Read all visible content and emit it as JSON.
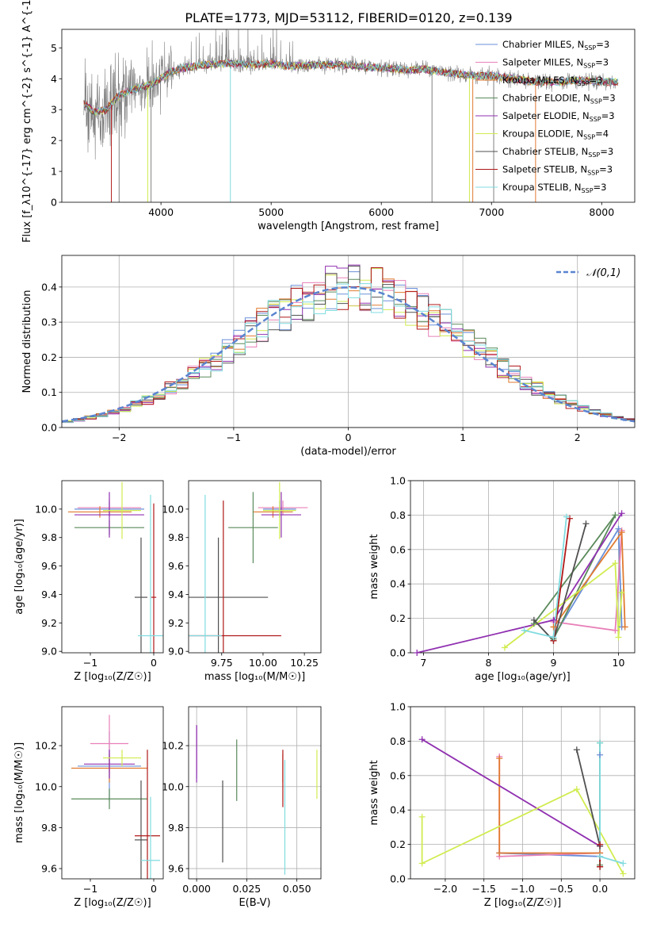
{
  "title": "PLATE=1773, MJD=53112, FIBERID=0120, z=0.139",
  "colors": [
    "#6a8fd8",
    "#e880b8",
    "#e07a30",
    "#5a8a5a",
    "#9030b0",
    "#d0ec50",
    "#505050",
    "#b01818",
    "#80dce0"
  ],
  "legend_labels": [
    "Chabrier MILES, N_{SSP}=3",
    "Salpeter MILES, N_{SSP}=3",
    "Kroupa MILES, N_{SSP}=3",
    "Chabrier ELODIE, N_{SSP}=3",
    "Salpeter ELODIE, N_{SSP}=3",
    "Kroupa ELODIE, N_{SSP}=4",
    "Chabrier STELIB, N_{SSP}=3",
    "Salpeter STELIB, N_{SSP}=3",
    "Kroupa STELIB, N_{SSP}=3"
  ],
  "chart_data": [
    {
      "type": "line",
      "id": "spectrum",
      "xlabel": "wavelength [Angstrom, rest frame]",
      "ylabel": "Flux [f_λ10^{-17} erg cm^{-2} s^{-1} A^{-1}]",
      "xlim": [
        3100,
        8300
      ],
      "ylim": [
        0,
        5.6
      ],
      "xticks": [
        4000,
        5000,
        6000,
        7000,
        8000
      ],
      "yticks": [
        0,
        1,
        2,
        3,
        4,
        5
      ],
      "grid": false,
      "legend": "upper-right",
      "data_color": "#808080",
      "continuum": [
        [
          3300,
          3.2
        ],
        [
          3400,
          2.9
        ],
        [
          3500,
          3.0
        ],
        [
          3600,
          3.4
        ],
        [
          3700,
          3.6
        ],
        [
          3800,
          3.7
        ],
        [
          3900,
          3.8
        ],
        [
          4000,
          4.0
        ],
        [
          4100,
          4.25
        ],
        [
          4200,
          4.35
        ],
        [
          4400,
          4.45
        ],
        [
          4600,
          4.5
        ],
        [
          4800,
          4.45
        ],
        [
          5000,
          4.5
        ],
        [
          5200,
          4.4
        ],
        [
          5400,
          4.45
        ],
        [
          5600,
          4.45
        ],
        [
          5800,
          4.4
        ],
        [
          6000,
          4.35
        ],
        [
          6200,
          4.3
        ],
        [
          6400,
          4.3
        ],
        [
          6600,
          4.2
        ],
        [
          6800,
          4.1
        ],
        [
          7000,
          4.1
        ],
        [
          7200,
          4.0
        ],
        [
          7400,
          3.9
        ],
        [
          7600,
          3.9
        ],
        [
          7800,
          3.95
        ],
        [
          8000,
          3.9
        ],
        [
          8150,
          3.9
        ]
      ],
      "features": [
        {
          "x": 3550,
          "y": 0,
          "series": 7
        },
        {
          "x": 3620,
          "y": 0,
          "series": -1
        },
        {
          "x": 3880,
          "y": 0,
          "series": 5
        },
        {
          "x": 3910,
          "y": 0,
          "series": -1
        },
        {
          "x": 4630,
          "y": 0,
          "series": 8
        },
        {
          "x": 6460,
          "y": 0,
          "series": -1
        },
        {
          "x": 6800,
          "y": 0,
          "series": 5
        },
        {
          "x": 6830,
          "y": 0,
          "series": 2
        },
        {
          "x": 7020,
          "y": 0,
          "series": -1
        },
        {
          "x": 7400,
          "y": 0,
          "series": 2
        }
      ]
    },
    {
      "type": "bar",
      "id": "residuals",
      "xlabel": "(data-model)/error",
      "ylabel": "Normed distribution",
      "xlim": [
        -2.5,
        2.5
      ],
      "ylim": [
        0,
        0.49
      ],
      "xticks": [
        -2,
        -1,
        0,
        1,
        2
      ],
      "yticks": [
        0.0,
        0.1,
        0.2,
        0.3,
        0.4
      ],
      "grid": true,
      "reference_label": "𝒩(0,1)",
      "reference_color": "#5b84d0",
      "bin_width": 0.1
    },
    {
      "type": "scatter",
      "id": "age-vs-Z",
      "xlabel": "Z [log₁₀(Z/Z☉)]",
      "ylabel": "age  [log₁₀(age/yr)]",
      "xlim": [
        -1.45,
        0.15
      ],
      "ylim": [
        8.99,
        10.2
      ],
      "xticks": [
        -1,
        0
      ],
      "yticks": [
        9.0,
        9.2,
        9.4,
        9.6,
        9.8,
        10.0
      ],
      "grid": false,
      "points": [
        {
          "x": -0.7,
          "y": 10.0,
          "xerr": 0.55,
          "yerr": 0.05
        },
        {
          "x": -0.7,
          "y": 10.01,
          "xerr": 0.5,
          "yerr": 0.06
        },
        {
          "x": -0.85,
          "y": 9.98,
          "xerr": 0.5,
          "yerr": 0.04
        },
        {
          "x": -0.7,
          "y": 9.87,
          "xerr": 0.55,
          "yerr": 0.05
        },
        {
          "x": -0.7,
          "y": 9.96,
          "xerr": 0.55,
          "yerr": 0.16
        },
        {
          "x": -0.5,
          "y": 9.99,
          "xerr": 0.3,
          "yerr": 0.2
        },
        {
          "x": -0.2,
          "y": 9.38,
          "xerr": 0.1,
          "yerr": 0.42
        },
        {
          "x": 0.0,
          "y": 9.38,
          "xerr": 0.04,
          "yerr": 0.66
        },
        {
          "x": -0.05,
          "y": 9.11,
          "xerr": 0.2,
          "yerr": 0.99
        }
      ]
    },
    {
      "type": "scatter",
      "id": "age-vs-mass",
      "xlabel": "mass [log₁₀(M/M☉)]",
      "ylabel": "",
      "xlim": [
        9.55,
        10.35
      ],
      "ylim": [
        8.99,
        10.2
      ],
      "xticks": [
        9.75,
        10.0,
        10.25
      ],
      "yticks": [
        9.0,
        9.2,
        9.4,
        9.6,
        9.8,
        10.0
      ],
      "tick_labels_x": [
        "9.75",
        "10.00",
        "10.25"
      ],
      "grid": false,
      "points": [
        {
          "x": 10.1,
          "y": 10.0,
          "xerr": 0.1,
          "yerr": 0.06
        },
        {
          "x": 10.12,
          "y": 10.01,
          "xerr": 0.15,
          "yerr": 0.05
        },
        {
          "x": 10.06,
          "y": 9.98,
          "xerr": 0.12,
          "yerr": 0.04
        },
        {
          "x": 9.94,
          "y": 9.87,
          "xerr": 0.15,
          "yerr": 0.25
        },
        {
          "x": 10.11,
          "y": 9.96,
          "xerr": 0.12,
          "yerr": 0.16
        },
        {
          "x": 10.1,
          "y": 9.99,
          "xerr": 0.1,
          "yerr": 0.2
        },
        {
          "x": 9.73,
          "y": 9.38,
          "xerr": 0.3,
          "yerr": 0.42
        },
        {
          "x": 9.76,
          "y": 9.11,
          "xerr": 0.35,
          "yerr": 0.95
        },
        {
          "x": 9.65,
          "y": 9.11,
          "xerr": 0.1,
          "yerr": 0.99
        }
      ]
    },
    {
      "type": "line",
      "id": "mass-weight-vs-age",
      "xlabel": "age  [log₁₀(age/yr)]",
      "ylabel": "mass weight",
      "xlim": [
        6.8,
        10.25
      ],
      "ylim": [
        0,
        1.0
      ],
      "xticks": [
        7,
        8,
        9,
        10
      ],
      "yticks": [
        0.0,
        0.2,
        0.4,
        0.6,
        0.8,
        1.0
      ],
      "grid": true,
      "series": [
        {
          "points": [
            [
              9.0,
              0.09
            ],
            [
              10.0,
              0.72
            ],
            [
              10.05,
              0.15
            ]
          ]
        },
        {
          "points": [
            [
              9.0,
              0.18
            ],
            [
              9.95,
              0.13
            ],
            [
              10.05,
              0.71
            ]
          ]
        },
        {
          "points": [
            [
              9.0,
              0.15
            ],
            [
              10.05,
              0.7
            ],
            [
              10.1,
              0.15
            ]
          ]
        },
        {
          "points": [
            [
              8.7,
              0.17
            ],
            [
              9.95,
              0.8
            ],
            [
              9.0,
              0.08
            ]
          ]
        },
        {
          "points": [
            [
              6.9,
              0.0
            ],
            [
              9.0,
              0.19
            ],
            [
              10.05,
              0.81
            ]
          ]
        },
        {
          "points": [
            [
              8.25,
              0.03
            ],
            [
              9.95,
              0.52
            ],
            [
              10.0,
              0.09
            ],
            [
              10.05,
              0.35
            ]
          ]
        },
        {
          "points": [
            [
              8.7,
              0.19
            ],
            [
              9.0,
              0.07
            ],
            [
              9.5,
              0.75
            ]
          ]
        },
        {
          "points": [
            [
              9.0,
              0.07
            ],
            [
              9.25,
              0.78
            ]
          ]
        },
        {
          "points": [
            [
              8.55,
              0.13
            ],
            [
              9.0,
              0.09
            ],
            [
              9.2,
              0.79
            ]
          ]
        }
      ]
    },
    {
      "type": "scatter",
      "id": "mass-vs-Z",
      "xlabel": "Z [log₁₀(Z/Z☉)]",
      "ylabel": "mass [log₁₀(M/M☉)]",
      "xlim": [
        -1.45,
        0.15
      ],
      "ylim": [
        9.55,
        10.39
      ],
      "xticks": [
        -1,
        0
      ],
      "yticks": [
        9.6,
        9.8,
        10.0,
        10.2
      ],
      "grid": false,
      "points": [
        {
          "x": -0.7,
          "y": 10.1,
          "xerr": 0.5,
          "yerr": 0.17
        },
        {
          "x": -0.7,
          "y": 10.21,
          "xerr": 0.3,
          "yerr": 0.14
        },
        {
          "x": -0.7,
          "y": 10.09,
          "xerr": 0.6,
          "yerr": 0.07
        },
        {
          "x": -0.7,
          "y": 9.94,
          "xerr": 0.6,
          "yerr": 0.05
        },
        {
          "x": -0.7,
          "y": 10.11,
          "xerr": 0.4,
          "yerr": 0.07
        },
        {
          "x": -0.5,
          "y": 10.14,
          "xerr": 0.3,
          "yerr": 0.04
        },
        {
          "x": -0.2,
          "y": 9.74,
          "xerr": 0.1,
          "yerr": 0.29
        },
        {
          "x": -0.1,
          "y": 9.76,
          "xerr": 0.2,
          "yerr": 0.42
        },
        {
          "x": -0.05,
          "y": 9.64,
          "xerr": 0.15,
          "yerr": 0.31
        }
      ]
    },
    {
      "type": "scatter",
      "id": "mass-vs-ebv",
      "xlabel": "E(B-V)",
      "ylabel": "",
      "xlim": [
        -0.004,
        0.062
      ],
      "ylim": [
        9.55,
        10.39
      ],
      "xticks": [
        0.0,
        0.025,
        0.05
      ],
      "yticks": [
        9.6,
        9.8,
        10.0,
        10.2
      ],
      "tick_labels_x": [
        "0.000",
        "0.025",
        "0.050"
      ],
      "grid": true,
      "points": [
        {
          "x": 0.0,
          "y": 10.17,
          "yerr": 0.13
        },
        {
          "x": 0.0,
          "y": 10.18,
          "yerr": 0.12
        },
        {
          "x": 0.043,
          "y": 10.09,
          "yerr": 0.07
        },
        {
          "x": 0.02,
          "y": 10.08,
          "yerr": 0.15
        },
        {
          "x": 0.0,
          "y": 10.16,
          "yerr": 0.14
        },
        {
          "x": 0.06,
          "y": 10.06,
          "yerr": 0.12
        },
        {
          "x": 0.013,
          "y": 9.83,
          "yerr": 0.2
        },
        {
          "x": 0.043,
          "y": 10.04,
          "yerr": 0.14
        },
        {
          "x": 0.044,
          "y": 9.85,
          "yerr": 0.28
        }
      ]
    },
    {
      "type": "line",
      "id": "mass-weight-vs-Z",
      "xlabel": "Z [log₁₀(Z/Z☉)]",
      "ylabel": "mass weight",
      "xlim": [
        -2.45,
        0.45
      ],
      "ylim": [
        0,
        1.0
      ],
      "xticks": [
        -2.0,
        -1.5,
        -1.0,
        -0.5,
        0.0
      ],
      "yticks": [
        0.0,
        0.2,
        0.4,
        0.6,
        0.8,
        1.0
      ],
      "tick_labels_x": [
        "−2.0",
        "−1.5",
        "−1.0",
        "−0.5",
        "0.0"
      ],
      "grid": true,
      "series": [
        {
          "points": [
            [
              -1.3,
              0.15
            ],
            [
              0.0,
              0.13
            ],
            [
              0.0,
              0.72
            ]
          ]
        },
        {
          "points": [
            [
              -1.3,
              0.71
            ],
            [
              -1.3,
              0.13
            ],
            [
              0.0,
              0.15
            ]
          ]
        },
        {
          "points": [
            [
              -1.3,
              0.7
            ],
            [
              -1.3,
              0.15
            ],
            [
              0.0,
              0.15
            ]
          ]
        },
        {
          "points": [
            [
              0.0,
              0.79
            ],
            [
              0.0,
              0.08
            ]
          ]
        },
        {
          "points": [
            [
              -2.3,
              0.81
            ],
            [
              0.0,
              0.19
            ]
          ]
        },
        {
          "points": [
            [
              -2.3,
              0.36
            ],
            [
              -2.3,
              0.09
            ],
            [
              -0.3,
              0.52
            ],
            [
              0.3,
              0.03
            ]
          ]
        },
        {
          "points": [
            [
              -0.3,
              0.75
            ],
            [
              0.0,
              0.19
            ],
            [
              0.0,
              0.07
            ]
          ]
        },
        {
          "points": [
            [
              0.0,
              0.07
            ],
            [
              0.0,
              0.2
            ]
          ]
        },
        {
          "points": [
            [
              0.0,
              0.79
            ],
            [
              0.0,
              0.13
            ],
            [
              0.3,
              0.09
            ]
          ]
        }
      ]
    }
  ]
}
